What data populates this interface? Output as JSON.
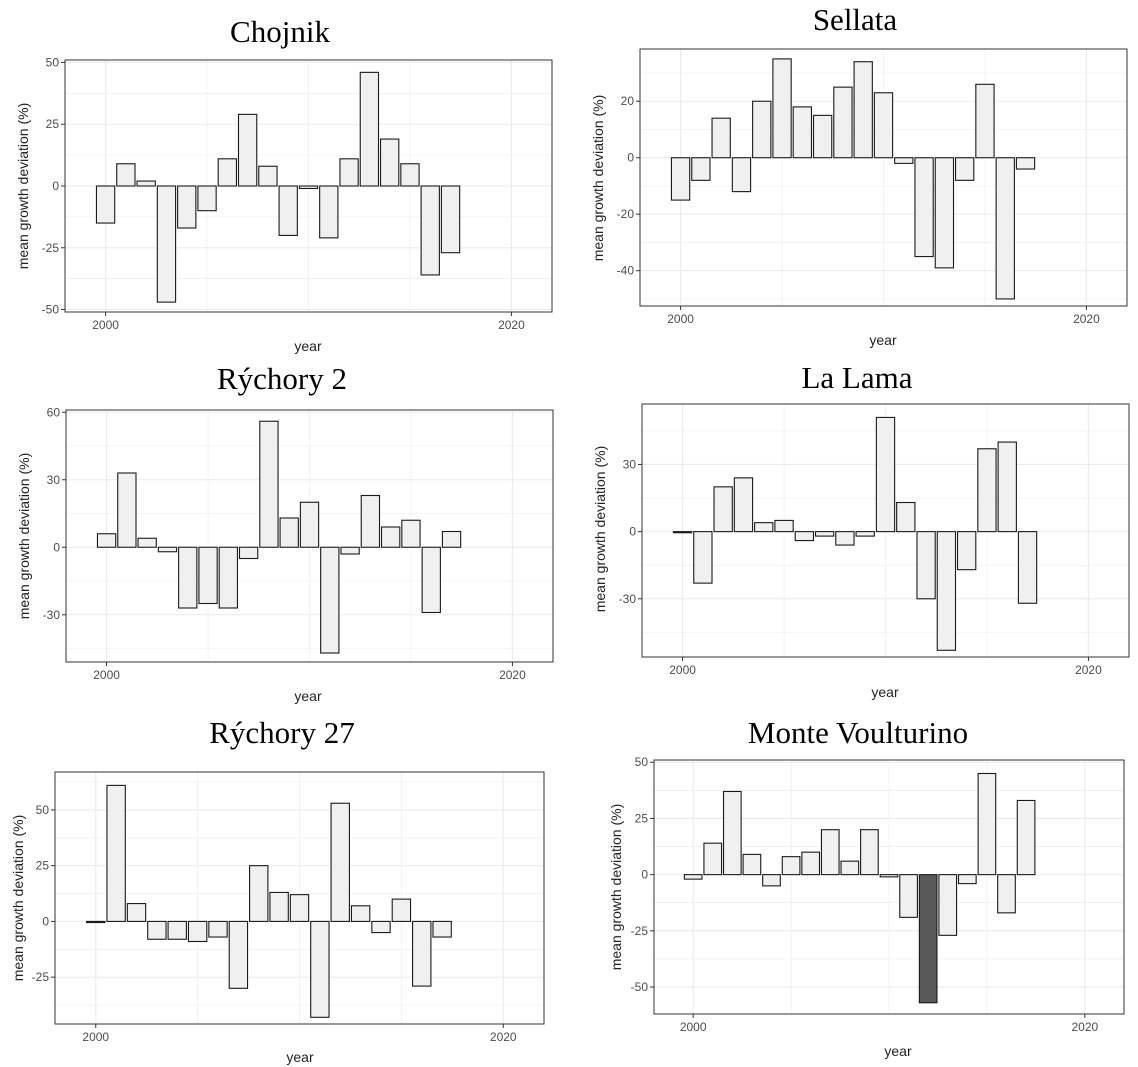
{
  "figure": {
    "x_axis_label": "year",
    "y_axis_label": "mean growth deviation (%)"
  },
  "colors": {
    "bar_fill": "#f0f0f0",
    "bar_highlight": "#595959",
    "bar_stroke": "#1a1a1a",
    "grid": "#ebebeb",
    "panel_border": "#333333"
  },
  "chart_data": [
    {
      "type": "bar",
      "title": "Chojnik",
      "xlabel": "year",
      "ylabel": "mean growth deviation (%)",
      "xlim": [
        1998,
        2022
      ],
      "ylim": [
        -51,
        51
      ],
      "x_ticks": [
        2000,
        2020
      ],
      "y_ticks": [
        50,
        25,
        0,
        -25,
        -50
      ],
      "grid": true,
      "x": [
        2000,
        2001,
        2002,
        2003,
        2004,
        2005,
        2006,
        2007,
        2008,
        2009,
        2010,
        2011,
        2012,
        2013,
        2014,
        2015,
        2016,
        2017
      ],
      "values": [
        -15,
        9,
        2,
        -47,
        -17,
        -10,
        11,
        29,
        8,
        -20,
        -1,
        -21,
        11,
        46,
        19,
        9,
        -36,
        -27
      ],
      "highlight_index": null
    },
    {
      "type": "bar",
      "title": "Sellata",
      "xlabel": "year",
      "ylabel": "mean growth deviation (%)",
      "xlim": [
        1998,
        2022
      ],
      "ylim": [
        -52.5,
        38.5
      ],
      "x_ticks": [
        2000,
        2020
      ],
      "y_ticks": [
        20,
        0,
        -20,
        -40
      ],
      "grid": true,
      "x": [
        2000,
        2001,
        2002,
        2003,
        2004,
        2005,
        2006,
        2007,
        2008,
        2009,
        2010,
        2011,
        2012,
        2013,
        2014,
        2015,
        2016,
        2017
      ],
      "values": [
        -15,
        -8,
        14,
        -12,
        20,
        35,
        18,
        15,
        25,
        34,
        23,
        -2,
        -35,
        -39,
        -8,
        26,
        -50,
        -4
      ],
      "highlight_index": null
    },
    {
      "type": "bar",
      "title": "Rýchory 2",
      "xlabel": "year",
      "ylabel": "mean growth deviation (%)",
      "xlim": [
        1998,
        2022
      ],
      "ylim": [
        -51,
        61
      ],
      "x_ticks": [
        2000,
        2020
      ],
      "y_ticks": [
        60,
        30,
        0,
        -30
      ],
      "grid": true,
      "x": [
        2000,
        2001,
        2002,
        2003,
        2004,
        2005,
        2006,
        2007,
        2008,
        2009,
        2010,
        2011,
        2012,
        2013,
        2014,
        2015,
        2016,
        2017
      ],
      "values": [
        6,
        33,
        4,
        -2,
        -27,
        -25,
        -27,
        -5,
        56,
        13,
        20,
        -47,
        -3,
        23,
        9,
        12,
        -29,
        7
      ],
      "highlight_index": null
    },
    {
      "type": "bar",
      "title": "La Lama",
      "xlabel": "year",
      "ylabel": "mean growth deviation (%)",
      "xlim": [
        1998,
        2022
      ],
      "ylim": [
        -56,
        57
      ],
      "x_ticks": [
        2000,
        2020
      ],
      "y_ticks": [
        30,
        0,
        -30
      ],
      "grid": true,
      "x": [
        2000,
        2001,
        2002,
        2003,
        2004,
        2005,
        2006,
        2007,
        2008,
        2009,
        2010,
        2011,
        2012,
        2013,
        2014,
        2015,
        2016,
        2017
      ],
      "values": [
        -0.5,
        -23,
        20,
        24,
        4,
        5,
        -4,
        -2,
        -6,
        -2,
        51,
        13,
        -30,
        -53,
        -17,
        37,
        40,
        -32
      ],
      "highlight_index": null
    },
    {
      "type": "bar",
      "title": "Rýchory 27",
      "xlabel": "year",
      "ylabel": "mean growth deviation (%)",
      "xlim": [
        1998,
        2022
      ],
      "ylim": [
        -46,
        67
      ],
      "x_ticks": [
        2000,
        2020
      ],
      "y_ticks": [
        50,
        25,
        0,
        -25
      ],
      "grid": true,
      "x": [
        2000,
        2001,
        2002,
        2003,
        2004,
        2005,
        2006,
        2007,
        2008,
        2009,
        2010,
        2011,
        2012,
        2013,
        2014,
        2015,
        2016,
        2017
      ],
      "values": [
        -0.5,
        61,
        8,
        -8,
        -8,
        -9,
        -7,
        -30,
        25,
        13,
        12,
        -43,
        53,
        7,
        -5,
        10,
        -29,
        -7
      ],
      "highlight_index": null
    },
    {
      "type": "bar",
      "title": "Monte Voulturino",
      "xlabel": "year",
      "ylabel": "mean growth deviation (%)",
      "xlim": [
        1998,
        2022
      ],
      "ylim": [
        -62,
        51
      ],
      "x_ticks": [
        2000,
        2020
      ],
      "y_ticks": [
        50,
        25,
        0,
        -25,
        -50
      ],
      "grid": true,
      "x": [
        2000,
        2001,
        2002,
        2003,
        2004,
        2005,
        2006,
        2007,
        2008,
        2009,
        2010,
        2011,
        2012,
        2013,
        2014,
        2015,
        2016,
        2017
      ],
      "values": [
        -2,
        14,
        37,
        9,
        -5,
        8,
        10,
        20,
        6,
        20,
        -1,
        -19,
        -57,
        -27,
        -4,
        45,
        -17,
        33
      ],
      "highlight_index": 12
    }
  ]
}
